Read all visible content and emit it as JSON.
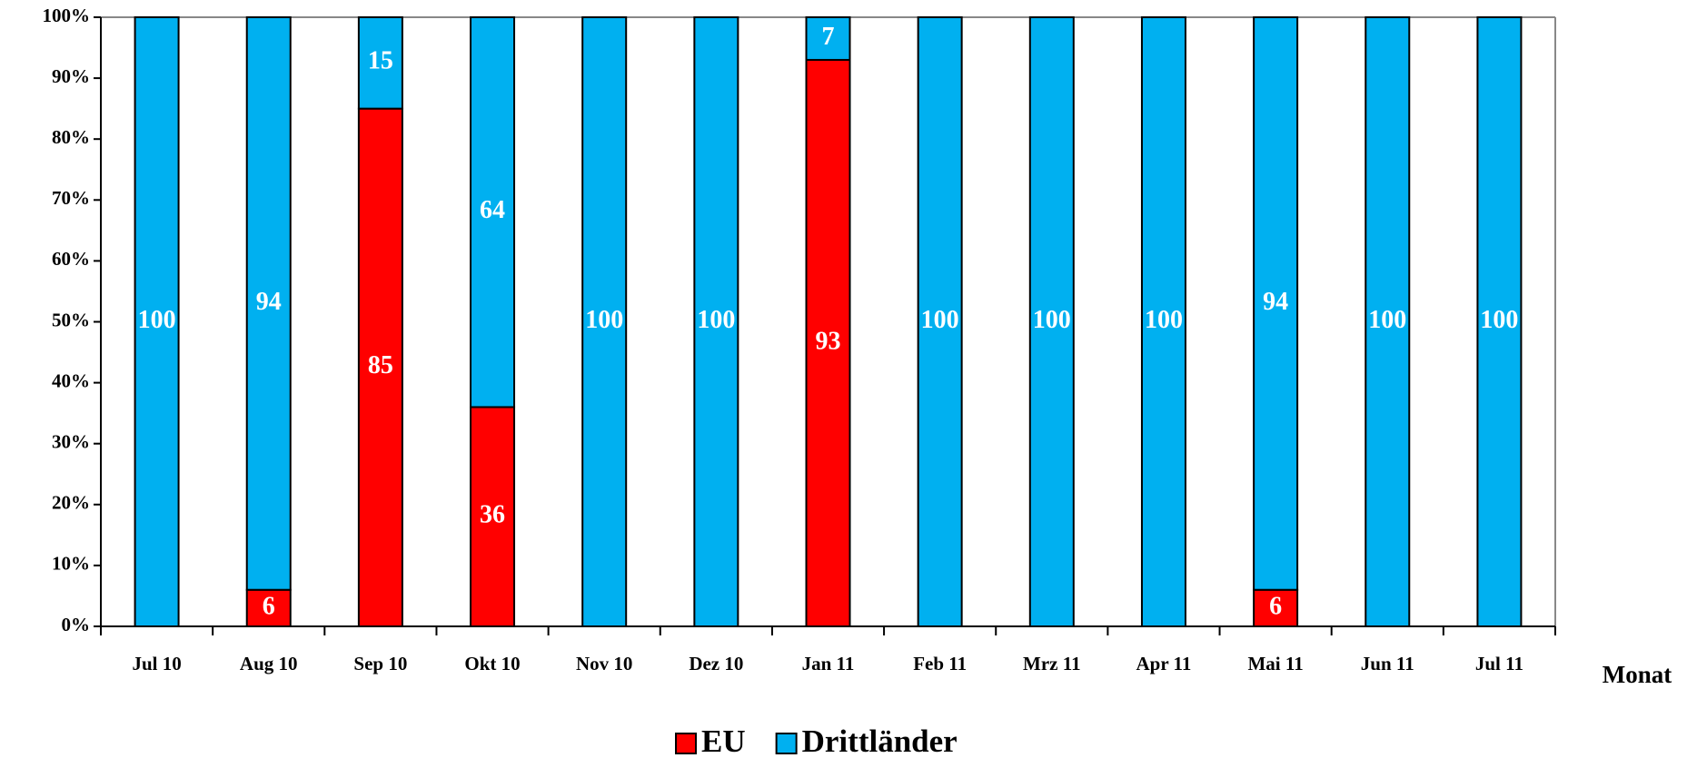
{
  "chart_data": {
    "type": "stacked_bar",
    "x_label": "Monat",
    "categories": [
      "Jul 10",
      "Aug 10",
      "Sep 10",
      "Okt 10",
      "Nov 10",
      "Dez 10",
      "Jan 11",
      "Feb 11",
      "Mrz 11",
      "Apr 11",
      "Mai 11",
      "Jun 11",
      "Jul 11"
    ],
    "series": [
      {
        "name": "EU",
        "color": "#ff0000",
        "values": [
          0,
          6,
          85,
          36,
          0,
          0,
          93,
          0,
          0,
          0,
          6,
          0,
          0
        ]
      },
      {
        "name": "Drittländer",
        "color": "#00b0f0",
        "values": [
          100,
          94,
          15,
          64,
          100,
          100,
          7,
          100,
          100,
          100,
          94,
          100,
          100
        ]
      }
    ],
    "ylim": [
      0,
      100
    ],
    "yticks": [
      {
        "value": 0,
        "label": "0%"
      },
      {
        "value": 10,
        "label": "10%"
      },
      {
        "value": 20,
        "label": "20%"
      },
      {
        "value": 30,
        "label": "30%"
      },
      {
        "value": 40,
        "label": "40%"
      },
      {
        "value": 50,
        "label": "50%"
      },
      {
        "value": 60,
        "label": "60%"
      },
      {
        "value": 70,
        "label": "70%"
      },
      {
        "value": 80,
        "label": "80%"
      },
      {
        "value": 90,
        "label": "90%"
      },
      {
        "value": 100,
        "label": "100%"
      }
    ],
    "legend": "bottom"
  }
}
